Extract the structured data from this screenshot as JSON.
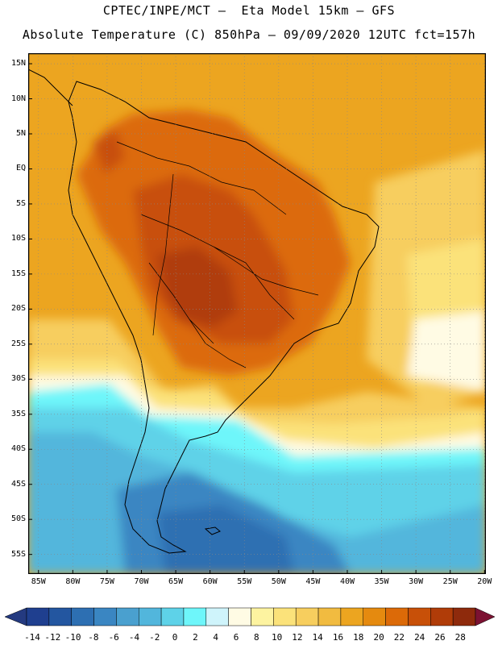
{
  "header": {
    "line1": "CPTEC/INPE/MCT –  Eta Model 15km – GFS",
    "line2": "Absolute Temperature (C) 850hPa – 09/09/2020 12UTC fct=157h"
  },
  "map": {
    "lat_labels": [
      "15N",
      "10N",
      "5N",
      "EQ",
      "5S",
      "10S",
      "15S",
      "20S",
      "25S",
      "30S",
      "35S",
      "40S",
      "45S",
      "50S",
      "55S"
    ],
    "lon_labels": [
      "85W",
      "80W",
      "75W",
      "70W",
      "65W",
      "60W",
      "55W",
      "50W",
      "45W",
      "40W",
      "35W",
      "30W",
      "25W",
      "20W"
    ]
  },
  "colorbar": {
    "labels": [
      "-14",
      "-12",
      "-10",
      "-8",
      "-6",
      "-4",
      "-2",
      "0",
      "2",
      "4",
      "6",
      "8",
      "10",
      "12",
      "14",
      "16",
      "18",
      "20",
      "22",
      "24",
      "26",
      "28"
    ],
    "colors": [
      "#1f3f8f",
      "#2356a0",
      "#2d6fb2",
      "#3a86c2",
      "#4aa0cf",
      "#52b6dc",
      "#5ed2e8",
      "#6ef6fa",
      "#cff4fb",
      "#fffbe4",
      "#fdf3a0",
      "#fbe27a",
      "#f7ce5e",
      "#f1bb40",
      "#eca520",
      "#e58a0f",
      "#dc6a08",
      "#c85008",
      "#b03c08",
      "#8e2a0c"
    ],
    "low_color": "#243a80",
    "high_color": "#7c1232"
  }
}
